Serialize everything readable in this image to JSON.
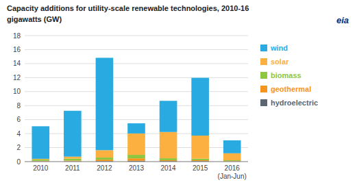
{
  "chart_data": {
    "type": "bar",
    "stacked": true,
    "title": "Capacity additions for utility-scale renewable technologies, 2010-16",
    "subtitle": "gigawatts (GW)",
    "annotations": [
      "eia"
    ],
    "categories": [
      "2010",
      "2011",
      "2012",
      "2013",
      "2014",
      "2015",
      "2016\n(Jan-Jun)"
    ],
    "series": [
      {
        "name": "hydroelectric",
        "color": "#5B6770",
        "values": [
          0.05,
          0.05,
          0.08,
          0.12,
          0.08,
          0.08,
          0.04
        ]
      },
      {
        "name": "geothermal",
        "color": "#F7941D",
        "values": [
          0.07,
          0.1,
          0.2,
          0.35,
          0.12,
          0.12,
          0.05
        ]
      },
      {
        "name": "biomass",
        "color": "#8DC63F",
        "values": [
          0.18,
          0.28,
          0.3,
          0.5,
          0.28,
          0.22,
          0.1
        ]
      },
      {
        "name": "solar",
        "color": "#FBB040",
        "values": [
          0.1,
          0.28,
          1.05,
          3.05,
          3.75,
          3.3,
          1.0
        ]
      },
      {
        "name": "wind",
        "color": "#29ABE2",
        "values": [
          4.65,
          6.55,
          13.2,
          1.45,
          4.45,
          8.25,
          1.85
        ]
      }
    ],
    "ylim": [
      0,
      18
    ],
    "yticks": [
      0,
      2,
      4,
      6,
      8,
      10,
      12,
      14,
      16,
      18
    ],
    "grid": true,
    "legend": "right"
  }
}
